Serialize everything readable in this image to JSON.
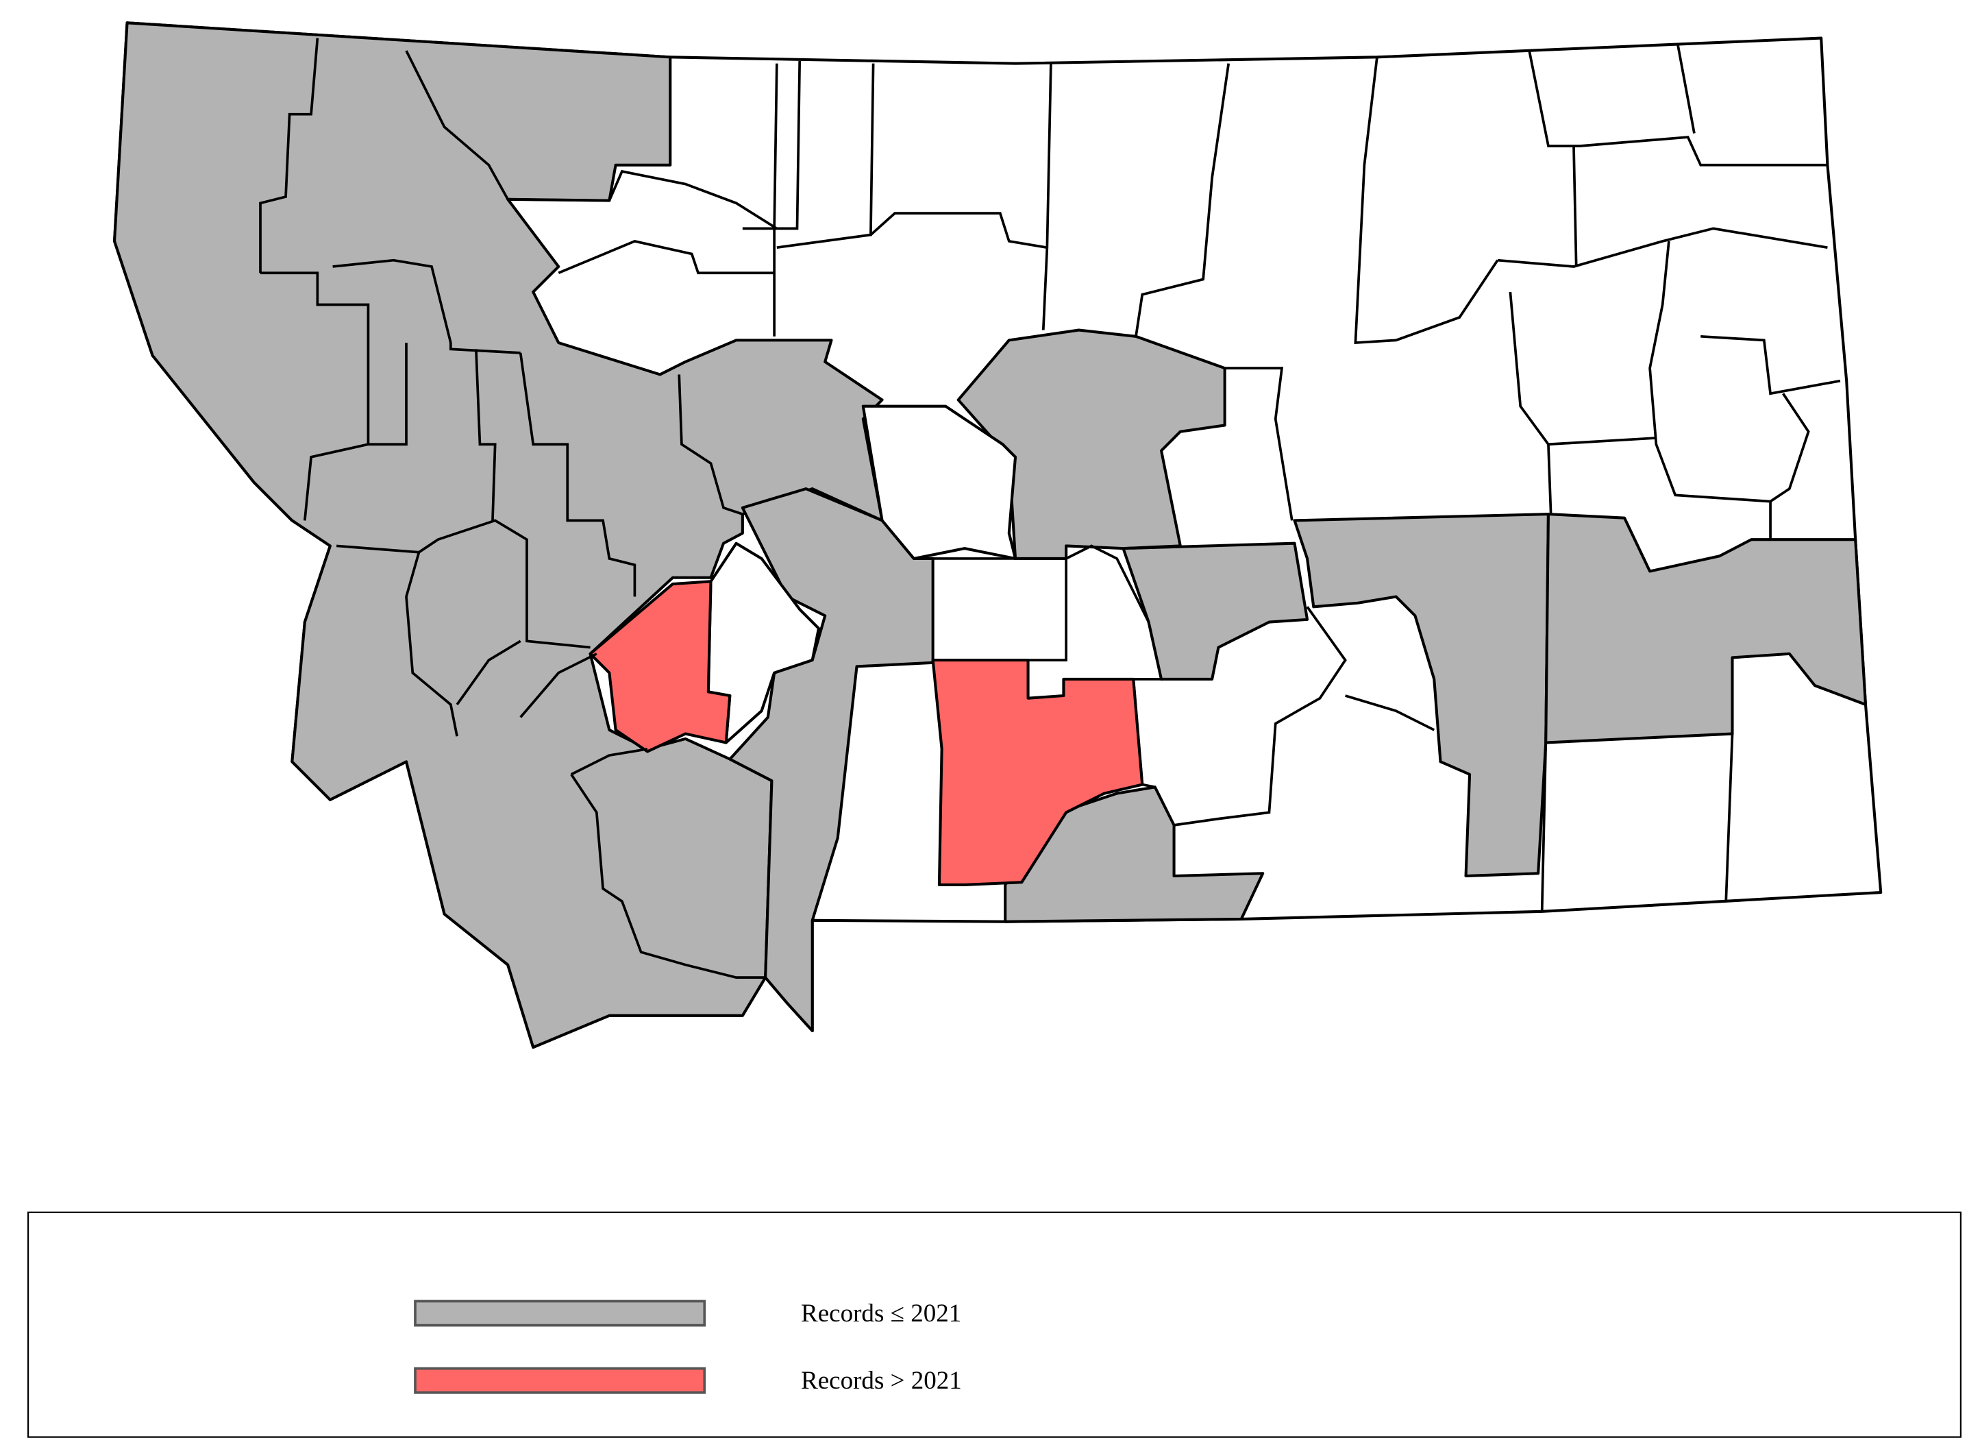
{
  "map": {
    "colors": {
      "no_records": "#ffffff",
      "records_le_2021": "#b3b3b3",
      "records_gt_2021": "#ff6666",
      "border": "#000000"
    }
  },
  "legend": {
    "items": [
      {
        "label": "Records ≤ 2021",
        "color": "#b3b3b3"
      },
      {
        "label": "Records > 2021",
        "color": "#ff6666"
      }
    ]
  }
}
